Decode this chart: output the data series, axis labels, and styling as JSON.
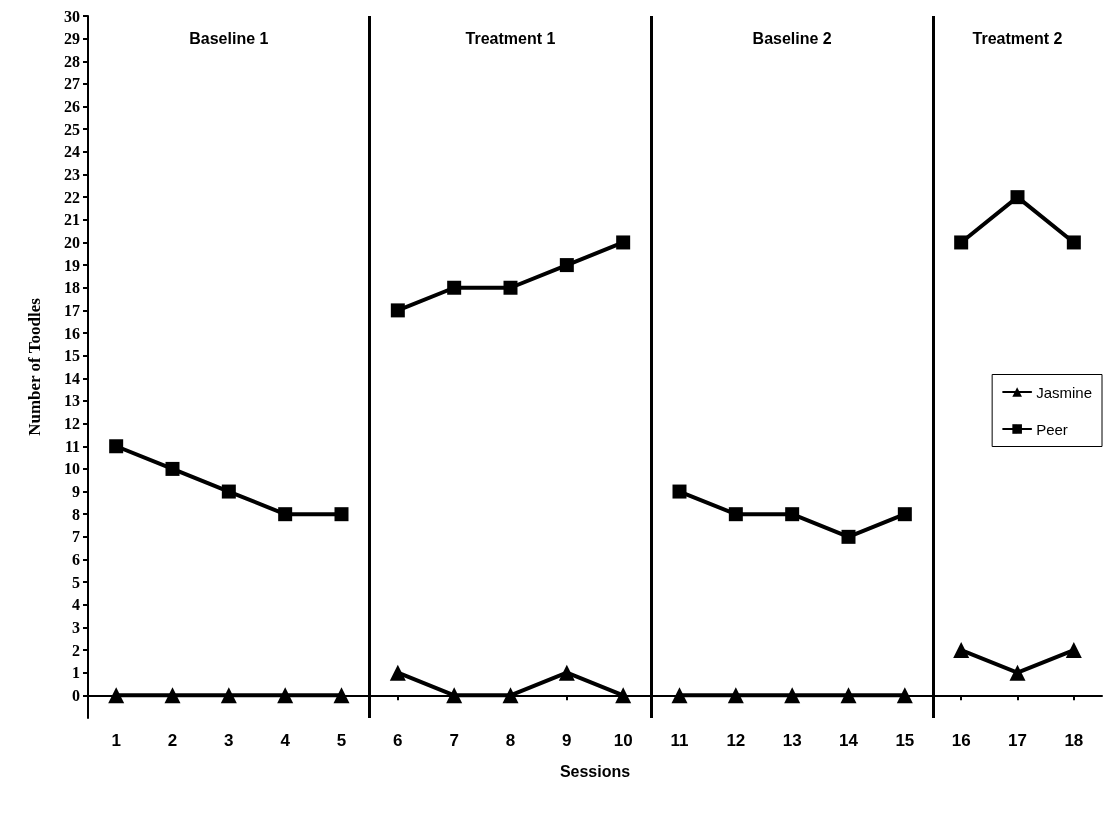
{
  "chart_data": {
    "type": "line",
    "xlabel": "Sessions",
    "ylabel": "Number of Toodles",
    "x": [
      1,
      2,
      3,
      4,
      5,
      6,
      7,
      8,
      9,
      10,
      11,
      12,
      13,
      14,
      15,
      16,
      17,
      18
    ],
    "series": [
      {
        "name": "Jasmine",
        "color": "#000000",
        "marker": "triangle",
        "values": [
          0,
          0,
          0,
          0,
          0,
          1,
          0,
          0,
          1,
          0,
          0,
          0,
          0,
          0,
          0,
          2,
          1,
          2
        ]
      },
      {
        "name": "Peer",
        "color": "#000000",
        "marker": "square",
        "values": [
          11,
          10,
          9,
          8,
          8,
          17,
          18,
          18,
          19,
          20,
          9,
          8,
          8,
          7,
          8,
          20,
          22,
          20
        ]
      }
    ],
    "xlim": [
      0.5,
      18.5
    ],
    "xticks": [
      1,
      2,
      3,
      4,
      5,
      6,
      7,
      8,
      9,
      10,
      11,
      12,
      13,
      14,
      15,
      16,
      17,
      18
    ],
    "ylim": [
      -1,
      30
    ],
    "yticks": [
      0,
      1,
      2,
      3,
      4,
      5,
      6,
      7,
      8,
      9,
      10,
      11,
      12,
      13,
      14,
      15,
      16,
      17,
      18,
      19,
      20,
      21,
      22,
      23,
      24,
      25,
      26,
      27,
      28,
      29,
      30
    ],
    "ref_lines": [
      {
        "axis": "x",
        "value": 5.5,
        "label": null
      },
      {
        "axis": "x",
        "value": 10.5,
        "label": null
      },
      {
        "axis": "x",
        "value": 15.5,
        "label": null
      }
    ],
    "annotations": [
      "Baseline 1",
      "Treatment 1",
      "Baseline 2",
      "Treatment 2"
    ],
    "grid": false,
    "legend": "right",
    "line_style": "solid"
  }
}
